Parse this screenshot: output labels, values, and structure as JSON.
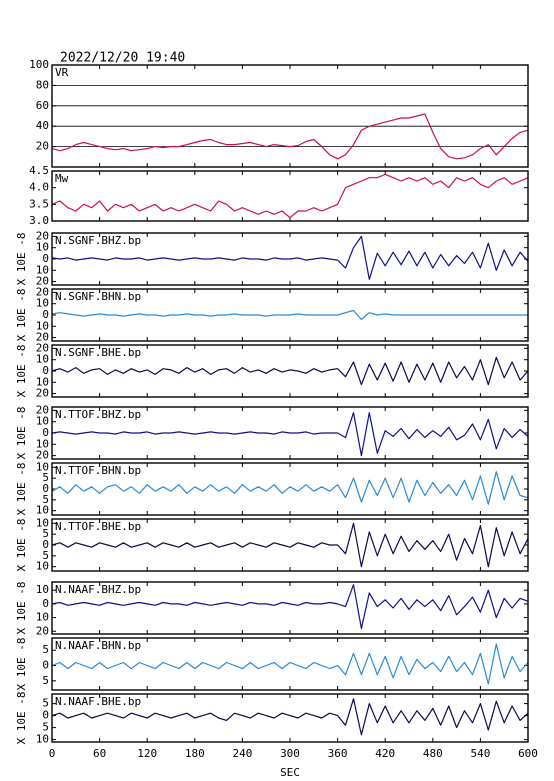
{
  "chart_data": {
    "type": "line",
    "title": "2022/12/20 19:40",
    "xlabel": "SEC",
    "xlim": [
      0,
      600
    ],
    "xticks": [
      0,
      60,
      120,
      180,
      240,
      300,
      360,
      420,
      480,
      540,
      600
    ],
    "x": [
      0,
      10,
      20,
      30,
      40,
      50,
      60,
      70,
      80,
      90,
      100,
      110,
      120,
      130,
      140,
      150,
      160,
      170,
      180,
      190,
      200,
      210,
      220,
      230,
      240,
      250,
      260,
      270,
      280,
      290,
      300,
      310,
      320,
      330,
      340,
      350,
      360,
      370,
      380,
      390,
      400,
      410,
      420,
      430,
      440,
      450,
      460,
      470,
      480,
      490,
      500,
      510,
      520,
      530,
      540,
      550,
      560,
      570,
      580,
      590,
      600
    ],
    "panels": [
      {
        "label": "VR",
        "color": "#cc1144",
        "grid": true,
        "ylim": [
          0,
          100
        ],
        "yticks": [
          20,
          40,
          60,
          80,
          100
        ],
        "values": [
          18,
          16,
          18,
          22,
          24,
          22,
          20,
          18,
          17,
          18,
          16,
          17,
          18,
          20,
          19,
          20,
          20,
          22,
          24,
          26,
          27,
          24,
          22,
          22,
          23,
          24,
          22,
          20,
          22,
          21,
          20,
          21,
          25,
          27,
          20,
          12,
          8,
          12,
          22,
          36,
          40,
          42,
          44,
          46,
          48,
          48,
          50,
          52,
          34,
          18,
          10,
          8,
          9,
          12,
          18,
          22,
          12,
          20,
          28,
          34,
          36
        ]
      },
      {
        "label": "Mw",
        "color": "#cc1144",
        "ylim": [
          3.0,
          4.5
        ],
        "yticks": [
          {
            "value": 3.0,
            "label": "3.0"
          },
          {
            "value": 3.5,
            "label": "3.5"
          },
          {
            "value": 4.0,
            "label": "4.0"
          },
          {
            "value": 4.5,
            "label": "4.5"
          }
        ],
        "values": [
          3.5,
          3.6,
          3.4,
          3.3,
          3.5,
          3.4,
          3.6,
          3.3,
          3.5,
          3.4,
          3.5,
          3.3,
          3.4,
          3.5,
          3.3,
          3.4,
          3.3,
          3.4,
          3.5,
          3.4,
          3.3,
          3.6,
          3.5,
          3.3,
          3.4,
          3.3,
          3.2,
          3.3,
          3.2,
          3.3,
          3.1,
          3.3,
          3.3,
          3.4,
          3.3,
          3.4,
          3.5,
          4.0,
          4.1,
          4.2,
          4.3,
          4.3,
          4.4,
          4.3,
          4.2,
          4.3,
          4.2,
          4.3,
          4.1,
          4.2,
          4.0,
          4.3,
          4.2,
          4.3,
          4.1,
          4.0,
          4.2,
          4.3,
          4.1,
          4.2,
          4.3
        ]
      },
      {
        "label": "N.SGNF.BHZ.bp",
        "ylabel": "X 10E -8",
        "color": "#10108a",
        "ylim": [
          -23,
          23
        ],
        "yticks": [
          {
            "value": -20,
            "label": "20"
          },
          {
            "value": -10,
            "label": "10"
          },
          0,
          10,
          20
        ],
        "values": [
          1,
          0,
          1,
          -1,
          0,
          1,
          0,
          -1,
          1,
          0,
          0,
          1,
          -1,
          0,
          1,
          0,
          -1,
          0,
          1,
          0,
          0,
          1,
          0,
          -1,
          1,
          0,
          0,
          -1,
          1,
          0,
          0,
          1,
          -1,
          0,
          1,
          0,
          -1,
          -8,
          10,
          20,
          -18,
          5,
          -6,
          6,
          -5,
          7,
          -6,
          6,
          -8,
          4,
          -6,
          3,
          -4,
          6,
          -8,
          14,
          -10,
          8,
          -6,
          6,
          -2
        ]
      },
      {
        "label": "N.SGNF.BHN.bp",
        "ylabel": "X 10E -8",
        "color": "#2a8ad8",
        "ylim": [
          -23,
          23
        ],
        "yticks": [
          {
            "value": -20,
            "label": "20"
          },
          {
            "value": -10,
            "label": "10"
          },
          0,
          10,
          20
        ],
        "values": [
          1,
          2,
          1,
          0,
          -1,
          0,
          1,
          0,
          0,
          -1,
          0,
          1,
          0,
          0,
          -1,
          0,
          0,
          1,
          0,
          0,
          -1,
          0,
          0,
          1,
          0,
          0,
          0,
          -1,
          0,
          0,
          0,
          1,
          0,
          0,
          0,
          0,
          0,
          2,
          4,
          -4,
          2,
          0,
          1,
          0,
          0,
          0,
          0,
          0,
          0,
          0,
          0,
          0,
          0,
          0,
          0,
          0,
          0,
          0,
          0,
          0,
          0
        ]
      },
      {
        "label": "N.SGNF.BHE.bp",
        "ylabel": "X 10E -8",
        "color": "#0a0a50",
        "ylim": [
          -23,
          23
        ],
        "yticks": [
          {
            "value": -20,
            "label": "20"
          },
          {
            "value": -10,
            "label": "10"
          },
          0,
          10,
          20
        ],
        "values": [
          0,
          2,
          -1,
          3,
          -2,
          1,
          2,
          -3,
          1,
          -2,
          2,
          -1,
          1,
          -3,
          2,
          1,
          -2,
          3,
          -1,
          2,
          -3,
          1,
          2,
          -2,
          3,
          -1,
          1,
          -2,
          2,
          -1,
          1,
          0,
          -2,
          2,
          -1,
          1,
          2,
          -5,
          8,
          -12,
          6,
          -8,
          7,
          -9,
          8,
          -10,
          6,
          -8,
          7,
          -10,
          8,
          -6,
          4,
          -8,
          10,
          -12,
          12,
          -6,
          8,
          -8,
          0
        ]
      },
      {
        "label": "N.TTOF.BHZ.bp",
        "ylabel": "X 10E -8",
        "color": "#10108a",
        "ylim": [
          -23,
          23
        ],
        "yticks": [
          {
            "value": -20,
            "label": "20"
          },
          {
            "value": -10,
            "label": "10"
          },
          0,
          10,
          20
        ],
        "values": [
          0,
          1,
          0,
          -1,
          0,
          1,
          0,
          0,
          -1,
          1,
          0,
          0,
          1,
          -1,
          0,
          0,
          1,
          0,
          -1,
          0,
          1,
          0,
          0,
          -1,
          0,
          1,
          0,
          0,
          -1,
          1,
          0,
          0,
          1,
          -1,
          0,
          0,
          0,
          -4,
          18,
          -20,
          18,
          -18,
          2,
          -3,
          4,
          -5,
          3,
          -4,
          2,
          -3,
          5,
          -6,
          -2,
          8,
          -6,
          12,
          -14,
          4,
          -4,
          3,
          -3
        ]
      },
      {
        "label": "N.TTOF.BHN.bp",
        "ylabel": "X 10E -8",
        "color": "#2a8ad8",
        "ylim": [
          -12,
          12
        ],
        "yticks": [
          {
            "value": -10,
            "label": "10"
          },
          {
            "value": -5,
            "label": "5"
          },
          0,
          5,
          10
        ],
        "values": [
          -1,
          1,
          -2,
          2,
          -1,
          1,
          -2,
          1,
          2,
          -1,
          1,
          -2,
          2,
          -1,
          1,
          -1,
          2,
          -2,
          1,
          -1,
          2,
          -1,
          1,
          -2,
          2,
          -1,
          1,
          -1,
          2,
          -2,
          1,
          -1,
          2,
          -1,
          1,
          -1,
          2,
          -4,
          5,
          -6,
          4,
          -3,
          5,
          -4,
          5,
          -6,
          4,
          -3,
          3,
          -2,
          2,
          -3,
          4,
          -5,
          6,
          -7,
          8,
          -5,
          6,
          -3,
          -4
        ]
      },
      {
        "label": "N.TTOF.BHE.bp",
        "ylabel": "X 10E -8",
        "color": "#0a0a50",
        "ylim": [
          -12,
          12
        ],
        "yticks": [
          {
            "value": -10,
            "label": "10"
          },
          {
            "value": -5,
            "label": "5"
          },
          0,
          5,
          10
        ],
        "values": [
          0,
          1,
          -1,
          1,
          0,
          -1,
          1,
          0,
          -1,
          1,
          -1,
          0,
          1,
          -1,
          1,
          0,
          -1,
          1,
          -1,
          0,
          1,
          -1,
          0,
          1,
          -1,
          1,
          0,
          -1,
          1,
          0,
          -1,
          1,
          0,
          -1,
          1,
          0,
          0,
          -4,
          10,
          -10,
          6,
          -5,
          5,
          -4,
          4,
          -3,
          2,
          -2,
          2,
          -3,
          5,
          -7,
          3,
          -4,
          9,
          -10,
          8,
          -5,
          6,
          -4,
          3
        ]
      },
      {
        "label": "N.NAAF.BHZ.bp",
        "ylabel": "X 10E -8",
        "color": "#10108a",
        "ylim": [
          -22,
          16
        ],
        "yticks": [
          {
            "value": -20,
            "label": "20"
          },
          {
            "value": -10,
            "label": "10"
          },
          0,
          10
        ],
        "values": [
          0,
          1,
          -1,
          0,
          1,
          0,
          -1,
          1,
          0,
          -1,
          0,
          1,
          0,
          -1,
          1,
          0,
          0,
          -1,
          1,
          0,
          -1,
          0,
          1,
          0,
          -1,
          1,
          0,
          0,
          -1,
          1,
          0,
          -1,
          1,
          0,
          0,
          1,
          0,
          -2,
          14,
          -18,
          8,
          -2,
          3,
          -3,
          4,
          -4,
          3,
          -2,
          3,
          -5,
          6,
          -8,
          -2,
          5,
          -6,
          10,
          -10,
          4,
          -3,
          4,
          2
        ]
      },
      {
        "label": "N.NAAF.BHN.bp",
        "ylabel": "X 10E -8",
        "color": "#2a8ad8",
        "ylim": [
          -8,
          9
        ],
        "yticks": [
          {
            "value": -5,
            "label": "5"
          },
          0,
          5
        ],
        "values": [
          0,
          1,
          -1,
          1,
          0,
          -1,
          1,
          -1,
          0,
          1,
          -1,
          1,
          0,
          -1,
          1,
          0,
          -1,
          1,
          -1,
          1,
          0,
          -1,
          1,
          0,
          -1,
          1,
          -1,
          0,
          1,
          -1,
          1,
          0,
          -1,
          1,
          0,
          -1,
          0,
          -3,
          4,
          -3,
          4,
          -3,
          3,
          -4,
          3,
          -3,
          2,
          -1,
          1,
          -2,
          3,
          -2,
          1,
          -3,
          4,
          -6,
          7,
          -4,
          3,
          -2,
          1
        ]
      },
      {
        "label": "N.NAAF.BHE.bp",
        "ylabel": "X 10E -8",
        "color": "#0a0a50",
        "ylim": [
          -11,
          9
        ],
        "yticks": [
          {
            "value": -10,
            "label": "10"
          },
          {
            "value": -5,
            "label": "5"
          },
          0,
          5
        ],
        "values": [
          0,
          1,
          -1,
          0,
          1,
          -1,
          0,
          1,
          0,
          -1,
          1,
          0,
          -1,
          1,
          0,
          -1,
          0,
          1,
          -1,
          0,
          1,
          -1,
          -2,
          1,
          0,
          -1,
          1,
          0,
          -1,
          1,
          0,
          -1,
          1,
          0,
          -1,
          1,
          0,
          -4,
          7,
          -8,
          5,
          -3,
          4,
          -3,
          2,
          -3,
          2,
          -2,
          3,
          -4,
          4,
          -5,
          2,
          -3,
          5,
          -6,
          6,
          -3,
          4,
          -2,
          1
        ]
      }
    ]
  }
}
